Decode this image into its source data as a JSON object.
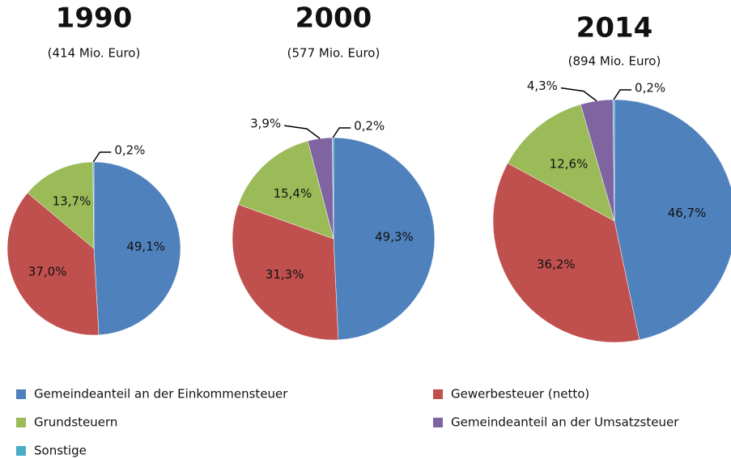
{
  "chart_data": [
    {
      "type": "pie",
      "title": "1990",
      "subtitle": "(414 Mio. Euro)",
      "categories": [
        "Gemeindeanteil an der Einkommensteuer",
        "Gewerbesteuer (netto)",
        "Grundsteuern",
        "Gemeindeanteil an der Umsatzsteuer",
        "Sonstige"
      ],
      "colors": [
        "#4f81bd",
        "#c0504d",
        "#9bbb59",
        "#8064a2",
        "#4bacc6"
      ],
      "values": [
        49.1,
        37.0,
        13.7,
        null,
        0.2
      ],
      "value_labels": [
        "49,1%",
        "37,0%",
        "13,7%",
        null,
        "0,2%"
      ]
    },
    {
      "type": "pie",
      "title": "2000",
      "subtitle": "(577 Mio. Euro)",
      "values": [
        49.3,
        31.3,
        15.4,
        3.9,
        0.2
      ],
      "value_labels": [
        "49,3%",
        "31,3%",
        "15,4%",
        "3,9%",
        "0,2%"
      ]
    },
    {
      "type": "pie",
      "title": "2014",
      "subtitle": "(894 Mio. Euro)",
      "values": [
        46.7,
        36.2,
        12.6,
        4.3,
        0.2
      ],
      "value_labels": [
        "46,7%",
        "36,2%",
        "12,6%",
        "4,3%",
        "0,2%"
      ]
    }
  ]
}
